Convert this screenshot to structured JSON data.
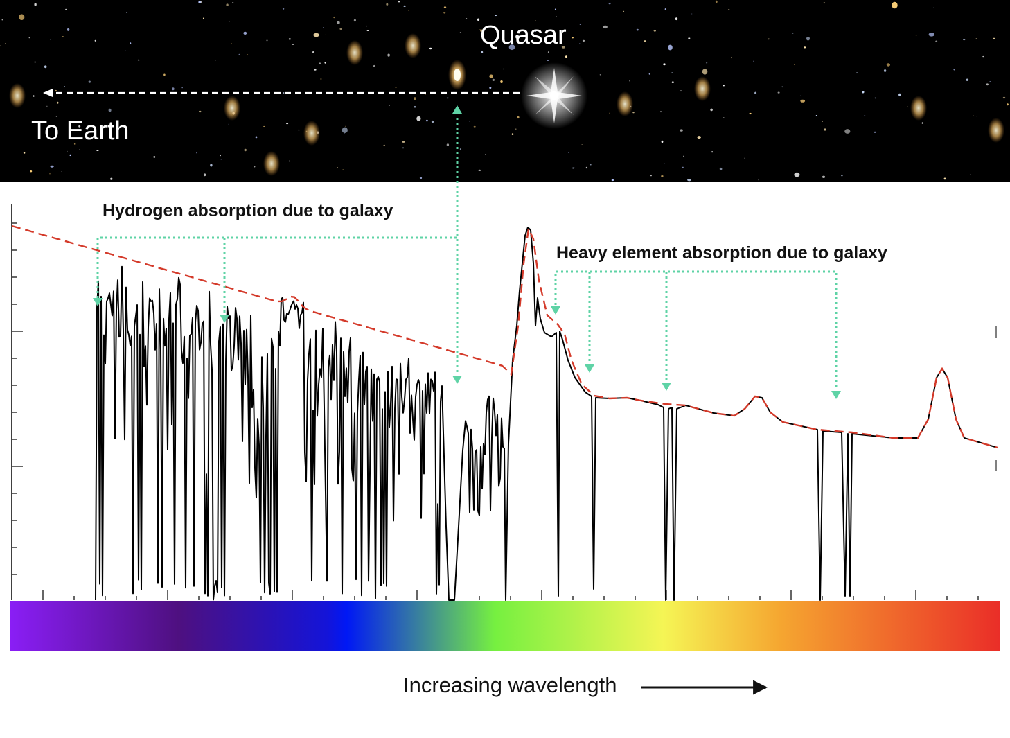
{
  "sky": {
    "quasar_label": "Quasar",
    "earth_label": "To Earth",
    "background_color": "#000000"
  },
  "annotations": {
    "hydrogen_label": "Hydrogen absorption due to galaxy",
    "heavy_label": "Heavy element absorption due to galaxy",
    "pointer_color": "#5fd3a6"
  },
  "spectrum": {
    "line_color": "#000000",
    "continuum_color": "#d43a2a"
  },
  "wavelength_axis": {
    "label": "Increasing wavelength",
    "gradient": [
      "#8a1ef5",
      "#4e1080",
      "#1414d8",
      "#0018f5",
      "#76f040",
      "#f5f555",
      "#f5a530",
      "#ea2e28"
    ]
  }
}
